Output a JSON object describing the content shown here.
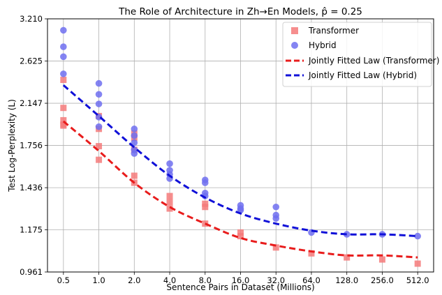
{
  "chart_data": {
    "type": "scatter",
    "title": "The Role of Architecture in Zh→En Models, p̂ = 0.25",
    "xlabel": "Sentence Pairs in Dataset (Millions)",
    "ylabel": "Test Log-Perplexity (L)",
    "x_scale": "log2",
    "y_scale": "log",
    "x_ticks": [
      "0.5",
      "1.0",
      "2.0",
      "4.0",
      "8.0",
      "16.0",
      "32.0",
      "64.0",
      "128.0",
      "256.0",
      "512.0"
    ],
    "y_ticks": [
      "0.961",
      "1.175",
      "1.436",
      "1.756",
      "2.147",
      "2.625",
      "3.210"
    ],
    "ylim": [
      0.961,
      3.21
    ],
    "grid": true,
    "legend_position": "top-right",
    "colors": {
      "transformer": "#f47a7a",
      "hybrid": "#6f6ff0",
      "transformer_fit": "#e81c1c",
      "hybrid_fit": "#1010d8"
    },
    "series": [
      {
        "name": "Transformer",
        "kind": "scatter-square",
        "points": [
          [
            0.5,
            2.4
          ],
          [
            0.5,
            2.1
          ],
          [
            0.5,
            1.98
          ],
          [
            0.5,
            1.94
          ],
          [
            0.5,
            1.93
          ],
          [
            1.0,
            2.02
          ],
          [
            1.0,
            1.9
          ],
          [
            1.0,
            1.75
          ],
          [
            1.0,
            1.64
          ],
          [
            2.0,
            1.86
          ],
          [
            2.0,
            1.82
          ],
          [
            2.0,
            1.72
          ],
          [
            2.0,
            1.52
          ],
          [
            2.0,
            1.47
          ],
          [
            4.0,
            1.38
          ],
          [
            4.0,
            1.34
          ],
          [
            4.0,
            1.3
          ],
          [
            8.0,
            1.33
          ],
          [
            8.0,
            1.31
          ],
          [
            8.0,
            1.21
          ],
          [
            16.0,
            1.16
          ],
          [
            16.0,
            1.14
          ],
          [
            32.0,
            1.08
          ],
          [
            64.0,
            1.05
          ],
          [
            128.0,
            1.03
          ],
          [
            256.0,
            1.02
          ],
          [
            512.0,
            1.0
          ]
        ]
      },
      {
        "name": "Hybrid",
        "kind": "scatter-circle",
        "points": [
          [
            0.5,
            3.04
          ],
          [
            0.5,
            2.81
          ],
          [
            0.5,
            2.68
          ],
          [
            0.5,
            2.47
          ],
          [
            1.0,
            2.36
          ],
          [
            1.0,
            2.24
          ],
          [
            1.0,
            2.14
          ],
          [
            1.0,
            2.01
          ],
          [
            1.0,
            1.92
          ],
          [
            2.0,
            1.9
          ],
          [
            2.0,
            1.84
          ],
          [
            2.0,
            1.78
          ],
          [
            2.0,
            1.72
          ],
          [
            2.0,
            1.69
          ],
          [
            4.0,
            1.61
          ],
          [
            4.0,
            1.56
          ],
          [
            4.0,
            1.53
          ],
          [
            4.0,
            1.5
          ],
          [
            8.0,
            1.49
          ],
          [
            8.0,
            1.47
          ],
          [
            8.0,
            1.4
          ],
          [
            8.0,
            1.38
          ],
          [
            16.0,
            1.32
          ],
          [
            16.0,
            1.3
          ],
          [
            16.0,
            1.29
          ],
          [
            32.0,
            1.31
          ],
          [
            32.0,
            1.26
          ],
          [
            32.0,
            1.24
          ],
          [
            64.0,
            1.16
          ],
          [
            128.0,
            1.15
          ],
          [
            256.0,
            1.15
          ],
          [
            512.0,
            1.14
          ]
        ]
      },
      {
        "name": "Jointly Fitted Law (Transformer)",
        "kind": "dashed-line",
        "points": [
          [
            0.5,
            1.97
          ],
          [
            1.0,
            1.71
          ],
          [
            2.0,
            1.47
          ],
          [
            4.0,
            1.31
          ],
          [
            8.0,
            1.21
          ],
          [
            16.0,
            1.13
          ],
          [
            32.0,
            1.09
          ],
          [
            64.0,
            1.06
          ],
          [
            128.0,
            1.04
          ],
          [
            256.0,
            1.04
          ],
          [
            512.0,
            1.03
          ]
        ]
      },
      {
        "name": "Jointly Fitted Law (Hybrid)",
        "kind": "dashed-line",
        "points": [
          [
            0.5,
            2.34
          ],
          [
            1.0,
            2.02
          ],
          [
            2.0,
            1.74
          ],
          [
            4.0,
            1.52
          ],
          [
            8.0,
            1.37
          ],
          [
            16.0,
            1.27
          ],
          [
            32.0,
            1.21
          ],
          [
            64.0,
            1.17
          ],
          [
            128.0,
            1.15
          ],
          [
            256.0,
            1.15
          ],
          [
            512.0,
            1.14
          ]
        ]
      }
    ]
  }
}
